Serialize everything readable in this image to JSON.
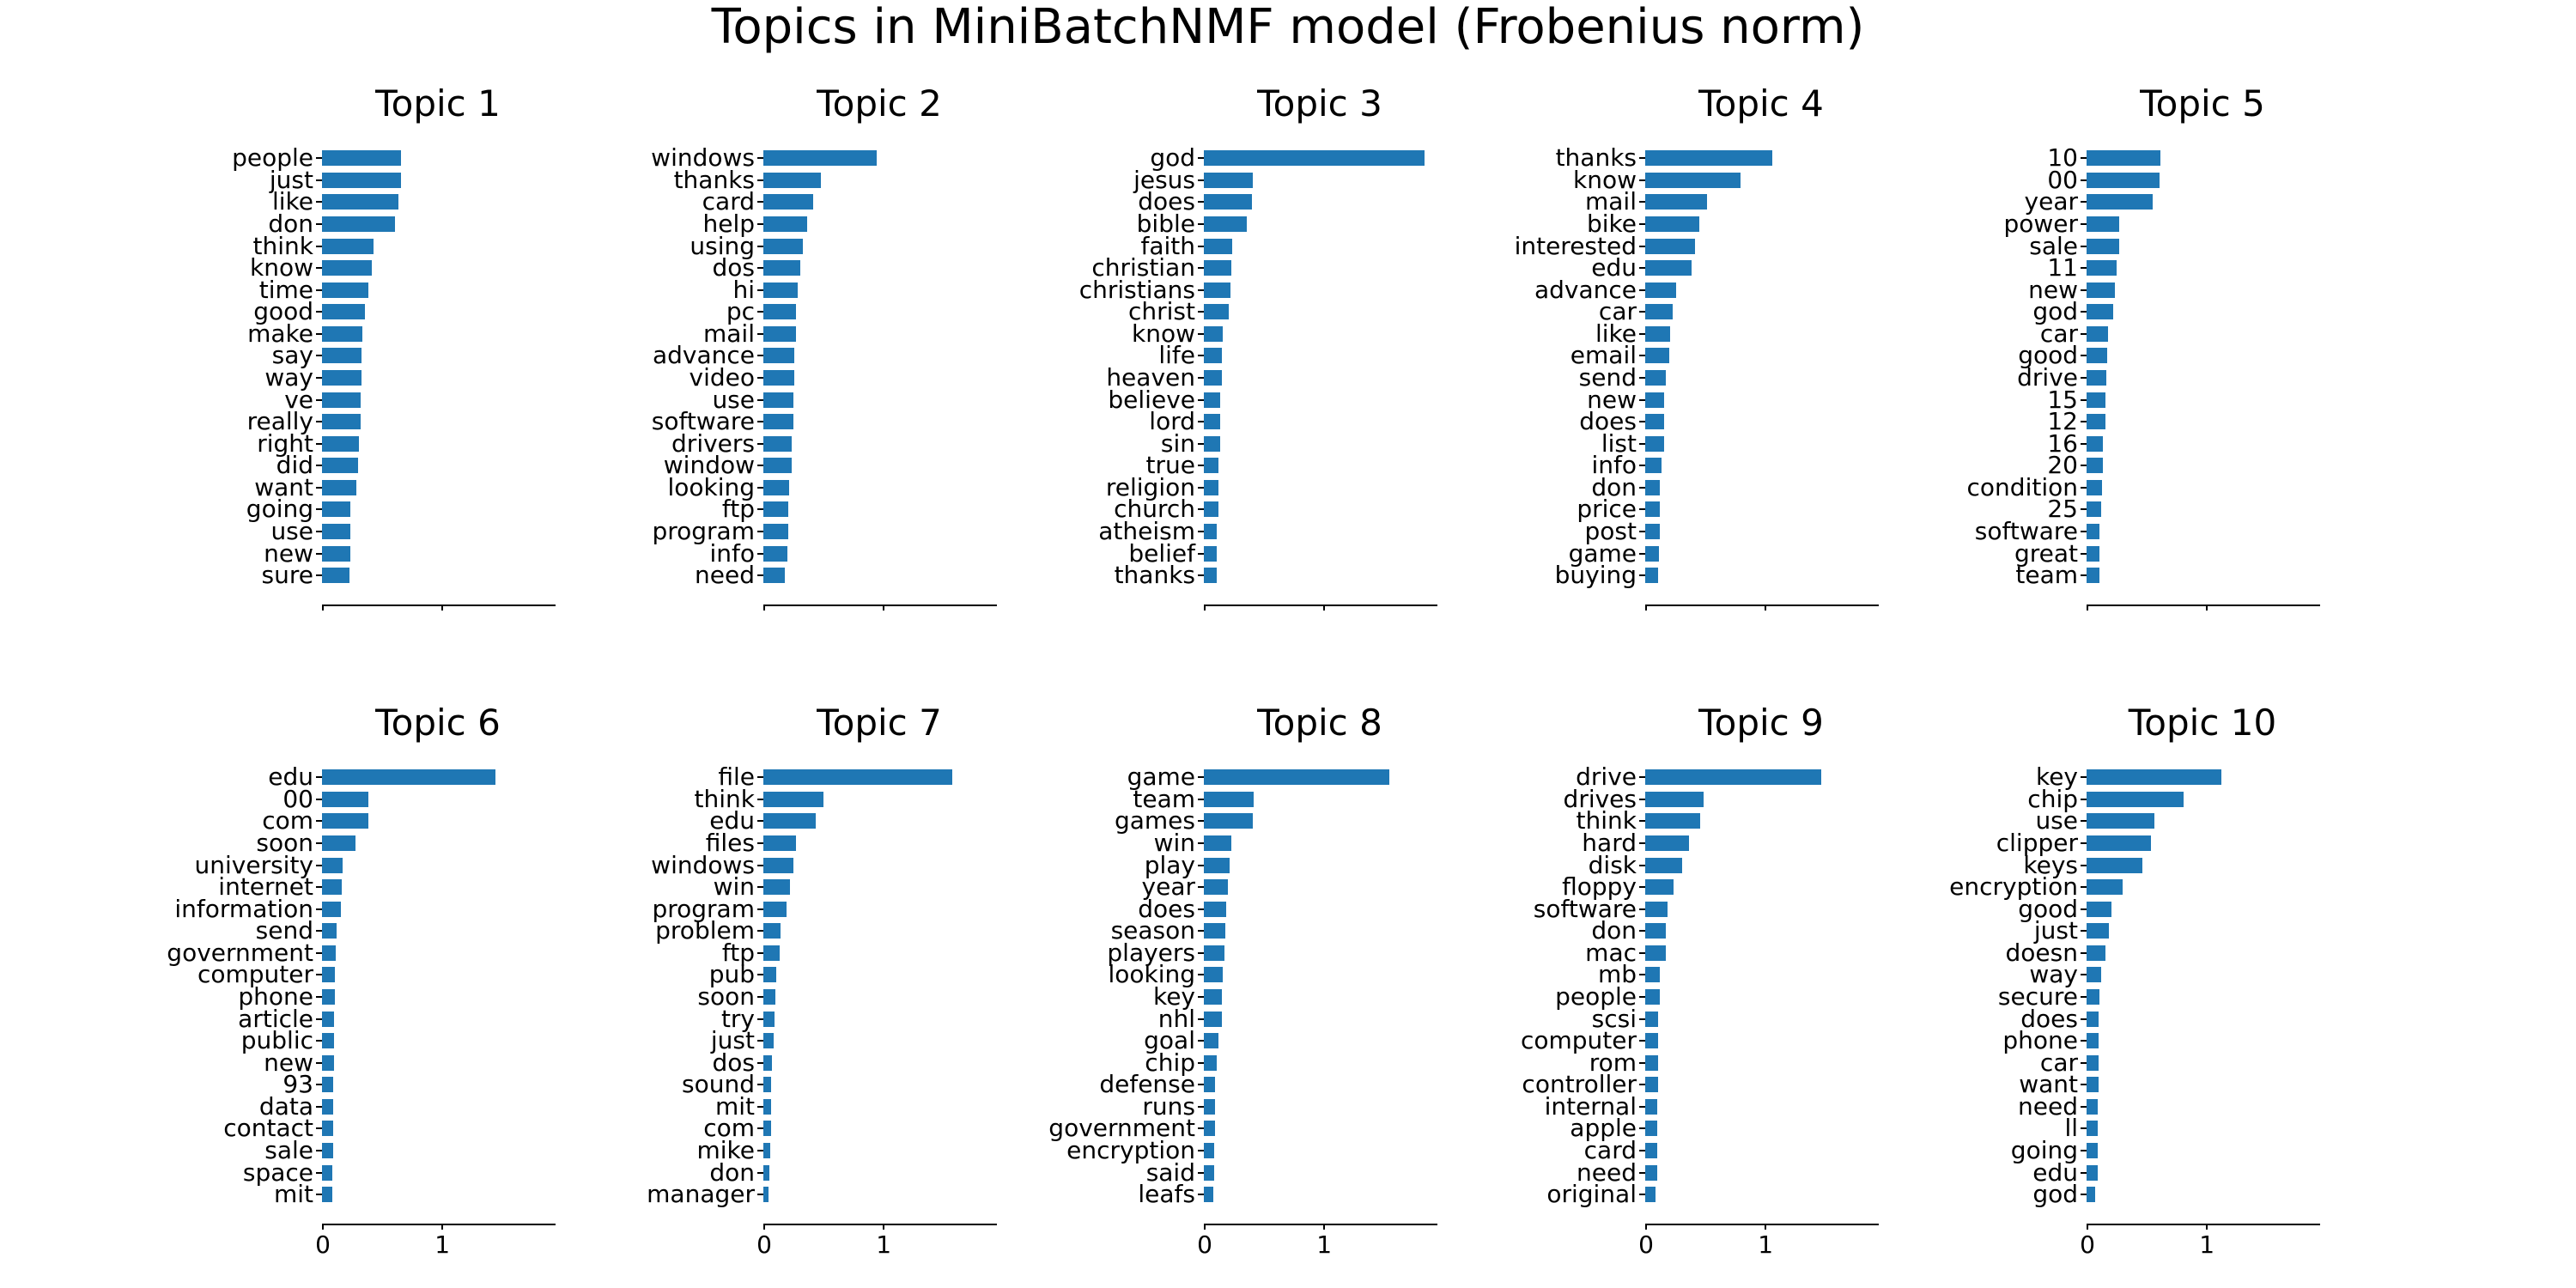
{
  "title": "Topics in MiniBatchNMF model (Frobenius norm)",
  "colors": {
    "bar": "#1f77b4",
    "axis": "#000000",
    "text": "#000000",
    "background": "#ffffff"
  },
  "chart_data": {
    "type": "bar",
    "orientation": "horizontal",
    "layout": {
      "rows": 2,
      "cols": 5
    },
    "title": "Topics in MiniBatchNMF model (Frobenius norm)",
    "xlim": [
      0,
      1.94
    ],
    "xticks": [
      0,
      1
    ],
    "xtick_labels": [
      "0",
      "1"
    ],
    "xtick_labels_bottom_row_only": true,
    "grid": false,
    "legend": "none",
    "bar_color": "#1f77b4",
    "panels": [
      {
        "title": "Topic 1",
        "words": [
          "people",
          "just",
          "like",
          "don",
          "think",
          "know",
          "time",
          "good",
          "make",
          "say",
          "way",
          "ve",
          "really",
          "right",
          "did",
          "want",
          "going",
          "use",
          "new",
          "sure"
        ],
        "weights": [
          0.66,
          0.66,
          0.64,
          0.61,
          0.43,
          0.42,
          0.39,
          0.36,
          0.34,
          0.33,
          0.33,
          0.32,
          0.32,
          0.31,
          0.3,
          0.29,
          0.24,
          0.24,
          0.24,
          0.23
        ]
      },
      {
        "title": "Topic 2",
        "words": [
          "windows",
          "thanks",
          "card",
          "help",
          "using",
          "dos",
          "hi",
          "pc",
          "mail",
          "advance",
          "video",
          "use",
          "software",
          "drivers",
          "window",
          "looking",
          "ftp",
          "program",
          "info",
          "need"
        ],
        "weights": [
          0.95,
          0.48,
          0.42,
          0.37,
          0.33,
          0.31,
          0.29,
          0.27,
          0.27,
          0.26,
          0.26,
          0.25,
          0.25,
          0.24,
          0.24,
          0.215,
          0.21,
          0.21,
          0.2,
          0.18
        ]
      },
      {
        "title": "Topic 3",
        "words": [
          "god",
          "jesus",
          "does",
          "bible",
          "faith",
          "christian",
          "christians",
          "christ",
          "know",
          "life",
          "heaven",
          "believe",
          "lord",
          "sin",
          "true",
          "religion",
          "church",
          "atheism",
          "belief",
          "thanks"
        ],
        "weights": [
          1.85,
          0.41,
          0.4,
          0.36,
          0.24,
          0.23,
          0.22,
          0.21,
          0.16,
          0.15,
          0.15,
          0.14,
          0.135,
          0.135,
          0.12,
          0.12,
          0.12,
          0.11,
          0.105,
          0.105
        ]
      },
      {
        "title": "Topic 4",
        "words": [
          "thanks",
          "know",
          "mail",
          "bike",
          "interested",
          "edu",
          "advance",
          "car",
          "like",
          "email",
          "send",
          "new",
          "does",
          "list",
          "info",
          "don",
          "price",
          "post",
          "game",
          "buying"
        ],
        "weights": [
          1.06,
          0.8,
          0.52,
          0.45,
          0.42,
          0.39,
          0.26,
          0.23,
          0.21,
          0.2,
          0.17,
          0.16,
          0.16,
          0.16,
          0.14,
          0.125,
          0.125,
          0.125,
          0.115,
          0.11
        ]
      },
      {
        "title": "Topic 5",
        "words": [
          "10",
          "00",
          "year",
          "power",
          "sale",
          "11",
          "new",
          "god",
          "car",
          "good",
          "drive",
          "15",
          "12",
          "16",
          "20",
          "condition",
          "25",
          "software",
          "great",
          "team"
        ],
        "weights": [
          0.62,
          0.61,
          0.55,
          0.27,
          0.27,
          0.25,
          0.235,
          0.22,
          0.18,
          0.17,
          0.165,
          0.16,
          0.155,
          0.135,
          0.135,
          0.13,
          0.125,
          0.11,
          0.11,
          0.11
        ]
      },
      {
        "title": "Topic 6",
        "words": [
          "edu",
          "00",
          "com",
          "soon",
          "university",
          "internet",
          "information",
          "send",
          "government",
          "computer",
          "phone",
          "article",
          "public",
          "new",
          "93",
          "data",
          "contact",
          "sale",
          "space",
          "mit"
        ],
        "weights": [
          1.45,
          0.39,
          0.39,
          0.28,
          0.17,
          0.165,
          0.16,
          0.125,
          0.115,
          0.11,
          0.11,
          0.1,
          0.1,
          0.1,
          0.095,
          0.09,
          0.09,
          0.09,
          0.088,
          0.085
        ]
      },
      {
        "title": "Topic 7",
        "words": [
          "file",
          "think",
          "edu",
          "files",
          "windows",
          "win",
          "program",
          "problem",
          "ftp",
          "pub",
          "soon",
          "try",
          "just",
          "dos",
          "sound",
          "mit",
          "com",
          "mike",
          "don",
          "manager"
        ],
        "weights": [
          1.58,
          0.5,
          0.44,
          0.27,
          0.25,
          0.22,
          0.195,
          0.145,
          0.14,
          0.105,
          0.1,
          0.092,
          0.087,
          0.075,
          0.065,
          0.063,
          0.062,
          0.058,
          0.05,
          0.045
        ]
      },
      {
        "title": "Topic 8",
        "words": [
          "game",
          "team",
          "games",
          "win",
          "play",
          "year",
          "does",
          "season",
          "players",
          "looking",
          "key",
          "nhl",
          "goal",
          "chip",
          "defense",
          "runs",
          "government",
          "encryption",
          "said",
          "leafs"
        ],
        "weights": [
          1.55,
          0.42,
          0.41,
          0.23,
          0.215,
          0.2,
          0.19,
          0.18,
          0.175,
          0.155,
          0.154,
          0.153,
          0.12,
          0.105,
          0.096,
          0.094,
          0.09,
          0.085,
          0.084,
          0.08
        ]
      },
      {
        "title": "Topic 9",
        "words": [
          "drive",
          "drives",
          "think",
          "hard",
          "disk",
          "floppy",
          "software",
          "don",
          "mac",
          "mb",
          "people",
          "scsi",
          "computer",
          "rom",
          "controller",
          "internal",
          "apple",
          "card",
          "need",
          "original"
        ],
        "weights": [
          1.47,
          0.49,
          0.46,
          0.37,
          0.31,
          0.235,
          0.19,
          0.175,
          0.17,
          0.125,
          0.124,
          0.11,
          0.11,
          0.11,
          0.108,
          0.1,
          0.1,
          0.098,
          0.098,
          0.088
        ]
      },
      {
        "title": "Topic 10",
        "words": [
          "key",
          "chip",
          "use",
          "clipper",
          "keys",
          "encryption",
          "good",
          "just",
          "doesn",
          "way",
          "secure",
          "does",
          "phone",
          "car",
          "want",
          "need",
          "ll",
          "going",
          "edu",
          "god"
        ],
        "weights": [
          1.13,
          0.81,
          0.57,
          0.54,
          0.47,
          0.3,
          0.21,
          0.19,
          0.16,
          0.12,
          0.11,
          0.104,
          0.104,
          0.1,
          0.097,
          0.094,
          0.092,
          0.092,
          0.09,
          0.075
        ]
      }
    ]
  }
}
